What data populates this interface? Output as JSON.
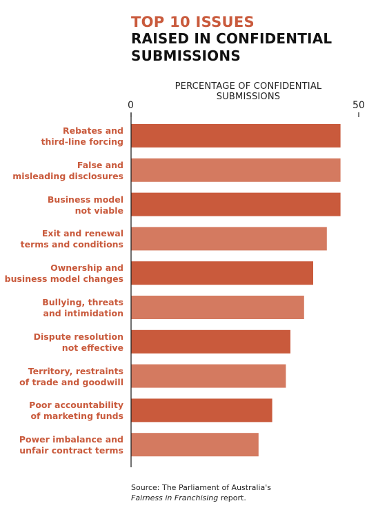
{
  "colors": {
    "title_accent": "#c95a3c",
    "bar_dark": "#c95a3c",
    "bar_light": "#d47a60",
    "label": "#c95a3c"
  },
  "chart_data": {
    "type": "bar",
    "orientation": "horizontal",
    "title_line1": "TOP 10 ISSUES",
    "title_line2": "RAISED IN CONFIDENTIAL SUBMISSIONS",
    "axis_title": "PERCENTAGE OF CONFIDENTIAL SUBMISSIONS",
    "xlim": [
      0,
      50
    ],
    "x_ticks": [
      "0",
      "50"
    ],
    "categories": [
      [
        "Rebates and",
        "third-line forcing"
      ],
      [
        "False and",
        "misleading disclosures"
      ],
      [
        "Business model",
        "not viable"
      ],
      [
        "Exit and renewal",
        "terms and conditions"
      ],
      [
        "Ownership and",
        "business model changes"
      ],
      [
        "Bullying, threats",
        "and intimidation"
      ],
      [
        "Dispute resolution",
        "not effective"
      ],
      [
        "Territory, restraints",
        "of trade and goodwill"
      ],
      [
        "Poor accountability",
        "of marketing funds"
      ],
      [
        "Power imbalance and",
        "unfair contract terms"
      ]
    ],
    "values": [
      46,
      46,
      46,
      43,
      40,
      38,
      35,
      34,
      31,
      28
    ],
    "grid": false,
    "legend": "none"
  },
  "source": {
    "line1": "Source: The Parliament of Australia's",
    "line2_italic": "Fairness in Franchising",
    "line2_rest": " report."
  }
}
